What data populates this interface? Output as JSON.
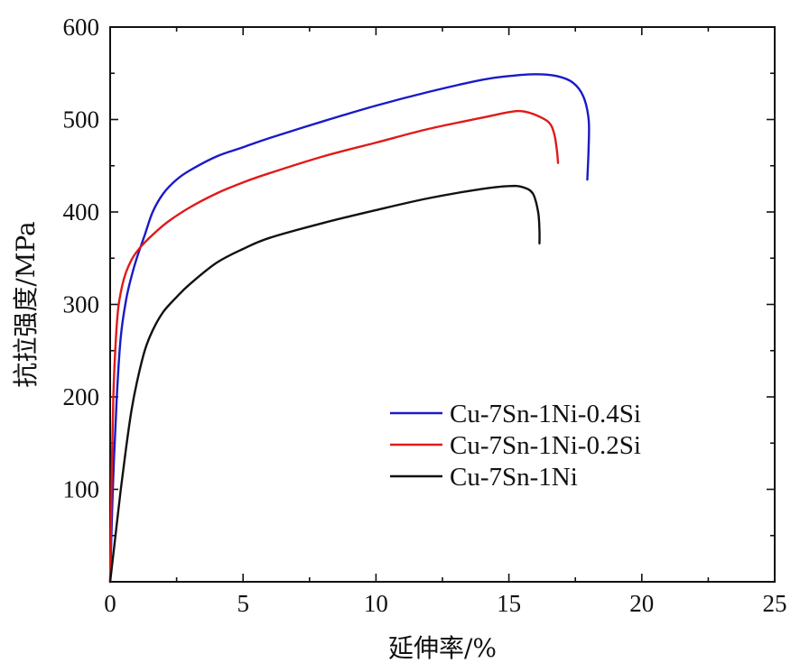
{
  "chart_data": {
    "type": "line",
    "title": "",
    "xlabel": "延伸率/%",
    "ylabel": "抗拉强度/MPa",
    "xlim": [
      0,
      25
    ],
    "ylim": [
      0,
      600
    ],
    "xticks": [
      0,
      5,
      10,
      15,
      20,
      25
    ],
    "xtick_labels": [
      "0",
      "5",
      "10",
      "15",
      "20",
      "25"
    ],
    "yticks": [
      100,
      200,
      300,
      400,
      500,
      600
    ],
    "ytick_labels": [
      "100",
      "200",
      "300",
      "400",
      "500",
      "600"
    ],
    "grid": false,
    "legend_position": "lower-right",
    "series": [
      {
        "name": "Cu-7Sn-1Ni-0.4Si",
        "color": "#1a1ac8",
        "x": [
          0,
          0.1,
          0.25,
          0.4,
          0.6,
          0.8,
          1.0,
          1.3,
          1.6,
          2.0,
          2.5,
          3.0,
          4.0,
          5.0,
          6.0,
          8.0,
          10.0,
          12.0,
          14.0,
          15.0,
          16.0,
          16.8,
          17.4,
          17.8,
          18.0,
          18.0,
          17.95
        ],
        "y": [
          0,
          100,
          200,
          265,
          305,
          330,
          350,
          375,
          400,
          420,
          435,
          445,
          460,
          470,
          480,
          498,
          515,
          530,
          543,
          547,
          549,
          547,
          540,
          525,
          500,
          470,
          435
        ]
      },
      {
        "name": "Cu-7Sn-1Ni-0.2Si",
        "color": "#e01a1a",
        "x": [
          0,
          0.05,
          0.12,
          0.2,
          0.3,
          0.45,
          0.6,
          0.8,
          1.0,
          1.3,
          1.7,
          2.2,
          3.0,
          4.0,
          5.0,
          6.0,
          8.0,
          10.0,
          12.0,
          14.0,
          15.0,
          15.5,
          16.0,
          16.5,
          16.7,
          16.8,
          16.85
        ],
        "y": [
          0,
          100,
          200,
          255,
          295,
          320,
          335,
          348,
          357,
          367,
          378,
          390,
          405,
          420,
          432,
          442,
          460,
          475,
          490,
          502,
          508,
          509,
          505,
          497,
          485,
          468,
          453
        ]
      },
      {
        "name": "Cu-7Sn-1Ni",
        "color": "#111111",
        "x": [
          0,
          0.2,
          0.4,
          0.6,
          0.8,
          1.0,
          1.3,
          1.6,
          2.0,
          2.5,
          3.0,
          4.0,
          5.0,
          6.0,
          8.0,
          10.0,
          12.0,
          14.0,
          15.0,
          15.5,
          15.9,
          16.1,
          16.15,
          16.15
        ],
        "y": [
          0,
          50,
          100,
          145,
          185,
          215,
          250,
          272,
          292,
          308,
          322,
          345,
          360,
          372,
          388,
          402,
          415,
          425,
          428,
          427,
          420,
          400,
          380,
          366
        ]
      }
    ]
  }
}
